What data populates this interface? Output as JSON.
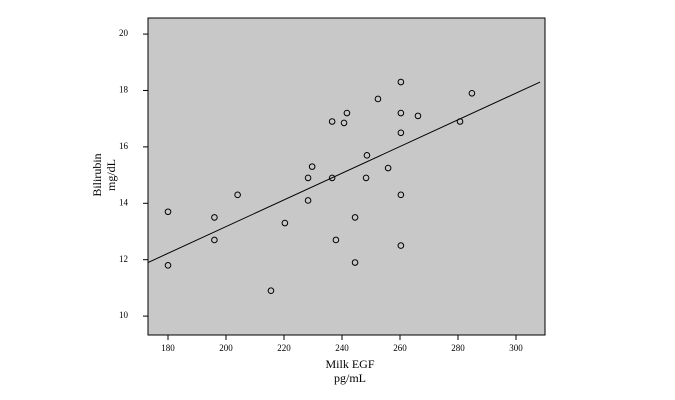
{
  "chart_data": {
    "type": "scatter",
    "x_label": [
      "Milk EGF",
      "pg/mL"
    ],
    "y_label": [
      "Bilirubin",
      "mg/dL"
    ],
    "series": [
      {
        "color": "#000000",
        "x": [
          180,
          180,
          196,
          196,
          204,
          215.5,
          220.3,
          228.3,
          228.3,
          229.7,
          236.6,
          236.6,
          237.9,
          240.7,
          241.7,
          244.5,
          244.5,
          248.3,
          248.6,
          252.4,
          255.9,
          260.3,
          260.3,
          260.3,
          260.3,
          260.3,
          266.2,
          280.7,
          284.8
        ],
        "values": [
          13.7,
          11.8,
          13.5,
          12.7,
          14.3,
          10.9,
          13.3,
          14.1,
          14.9,
          15.3,
          16.9,
          14.9,
          12.7,
          16.85,
          17.2,
          13.5,
          11.9,
          14.9,
          15.7,
          17.7,
          15.25,
          18.3,
          17.2,
          16.5,
          14.3,
          12.5,
          17.1,
          16.9,
          17.9
        ]
      }
    ],
    "trend_line": {
      "x": [
        173.1,
        308.3
      ],
      "values": [
        11.9,
        18.3
      ],
      "color": "#000000"
    },
    "background": "#c8c8c8",
    "xlim": [
      173.1,
      310
    ],
    "xticks": [
      180,
      200,
      220,
      240,
      260,
      280,
      300
    ],
    "ylim": [
      9.33,
      20.57
    ],
    "yticks": [
      10,
      12,
      14,
      16,
      18,
      20
    ]
  }
}
